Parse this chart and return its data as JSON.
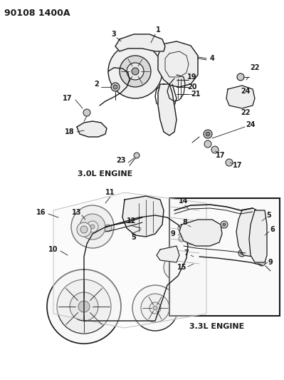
{
  "bg_color": "#ffffff",
  "text_color": "#1a1a1a",
  "line_color": "#1a1a1a",
  "fig_width": 3.99,
  "fig_height": 5.33,
  "dpi": 100,
  "header_text": "90108 1400A",
  "top_label": "3.0L ENGINE",
  "bottom_label": "3.3L ENGINE",
  "part_fontsize": 7,
  "header_fontsize": 9,
  "label_fontsize": 8
}
